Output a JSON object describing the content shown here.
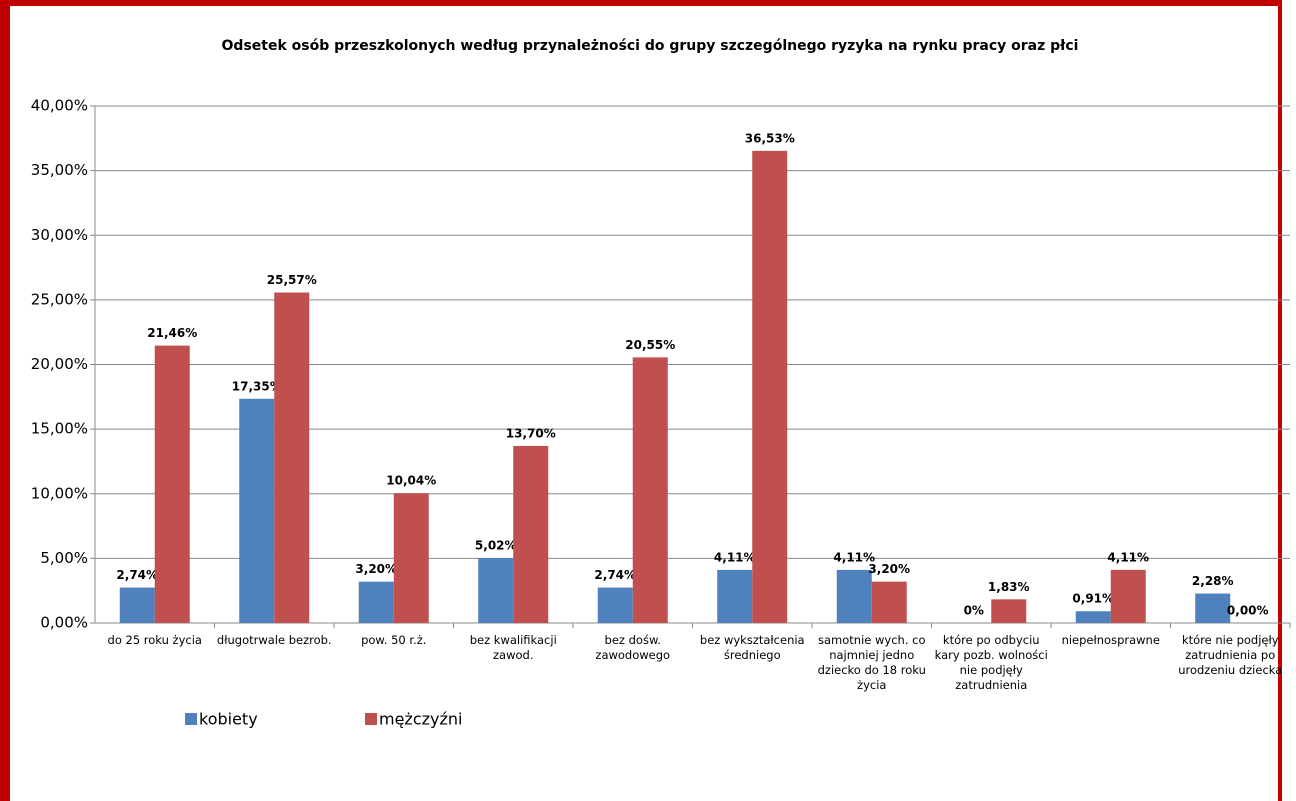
{
  "chart_data": {
    "type": "bar",
    "title": "Odsetek osób przeszkolonych według przynależności do grupy szczególnego ryzyka na rynku pracy oraz płci",
    "categories": [
      "do 25 roku życia",
      "długotrwale bezrob.",
      "pow. 50 r.ż.",
      "bez kwalifikacji zawod.",
      "bez dośw. zawodowego",
      "bez wykształcenia średniego",
      "samotnie wych. co najmniej jedno dziecko do 18 roku życia",
      "które po odbyciu kary pozb. wolności nie podjęły zatrudnienia",
      "niepełnosprawne",
      "które nie podjęły zatrudnienia po urodzeniu dziecka"
    ],
    "series": [
      {
        "name": "kobiety",
        "color": "#4f81bd",
        "values": [
          2.74,
          17.35,
          3.2,
          5.02,
          2.74,
          4.11,
          4.11,
          0,
          0.91,
          2.28
        ],
        "value_labels": [
          "2,74%",
          "17,35%",
          "3,20%",
          "5,02%",
          "2,74%",
          "4,11%",
          "4,11%",
          "0%",
          "0,91%",
          "2,28%"
        ]
      },
      {
        "name": "mężczyźni",
        "color": "#c0504d",
        "values": [
          21.46,
          25.57,
          10.04,
          13.7,
          20.55,
          36.53,
          3.2,
          1.83,
          4.11,
          0.0
        ],
        "value_labels": [
          "21,46%",
          "25,57%",
          "10,04%",
          "13,70%",
          "20,55%",
          "36,53%",
          "3,20%",
          "1,83%",
          "4,11%",
          "0,00%"
        ]
      }
    ],
    "ylim": [
      0,
      40
    ],
    "yticks": [
      {
        "value": 0,
        "label": "0,00%"
      },
      {
        "value": 5,
        "label": "5,00%"
      },
      {
        "value": 10,
        "label": "10,00%"
      },
      {
        "value": 15,
        "label": "15,00%"
      },
      {
        "value": 20,
        "label": "20,00%"
      },
      {
        "value": 25,
        "label": "25,00%"
      },
      {
        "value": 30,
        "label": "30,00%"
      },
      {
        "value": 35,
        "label": "35,00%"
      },
      {
        "value": 40,
        "label": "40,00%"
      }
    ],
    "grid": true,
    "legend": "bottom-left"
  }
}
